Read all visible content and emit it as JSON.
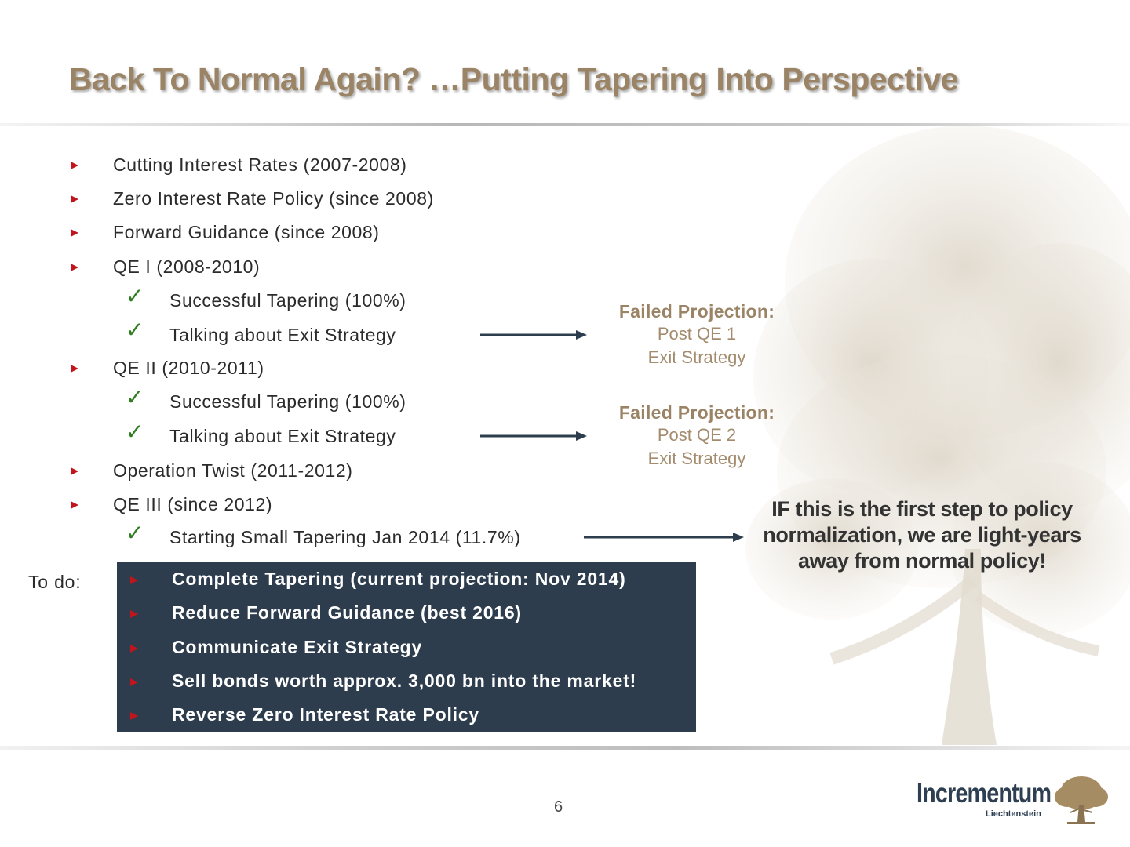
{
  "slide": {
    "title": "Back To Normal Again? …Putting Tapering Into Perspective",
    "page_number": "6"
  },
  "items": [
    {
      "text": "Cutting Interest Rates (2007-2008)",
      "level": 1
    },
    {
      "text": "Zero Interest Rate Policy (since 2008)",
      "level": 1
    },
    {
      "text": "Forward Guidance (since 2008)",
      "level": 1
    },
    {
      "text": "QE I (2008-2010)",
      "level": 1
    },
    {
      "text": "Successful Tapering (100%)",
      "level": 2
    },
    {
      "text": "Talking about Exit Strategy",
      "level": 2
    },
    {
      "text": "QE II (2010-2011)",
      "level": 1
    },
    {
      "text": "Successful Tapering (100%)",
      "level": 2
    },
    {
      "text": "Talking about Exit Strategy",
      "level": 2
    },
    {
      "text": "Operation Twist (2011-2012)",
      "level": 1
    },
    {
      "text": "QE III (since 2012)",
      "level": 1
    },
    {
      "text": "Starting Small Tapering Jan 2014 (11.7%)",
      "level": 2
    }
  ],
  "callouts": [
    {
      "heading": "Failed Projection:",
      "line1": "Post QE 1",
      "line2": "Exit Strategy"
    },
    {
      "heading": "Failed Projection:",
      "line1": "Post QE 2",
      "line2": "Exit Strategy"
    }
  ],
  "note": "IF this is the first step to policy normalization, we are light-years away from normal policy!",
  "todo": {
    "label": "To do:",
    "items": [
      "Complete Tapering (current projection: Nov 2014)",
      "Reduce Forward Guidance (best 2016)",
      "Communicate Exit Strategy",
      "Sell bonds worth approx. 3,000 bn into the market!",
      "Reverse Zero Interest Rate Policy"
    ]
  },
  "logo": {
    "name": "Incrementum",
    "subtitle": "Liechtenstein",
    "icon": "oak-tree-icon"
  },
  "colors": {
    "title": "#9b8466",
    "bullet": "#c0151c",
    "check": "#2f7d1f",
    "todo_box": "#2d3d4d",
    "arrow": "#2d3d4d"
  }
}
